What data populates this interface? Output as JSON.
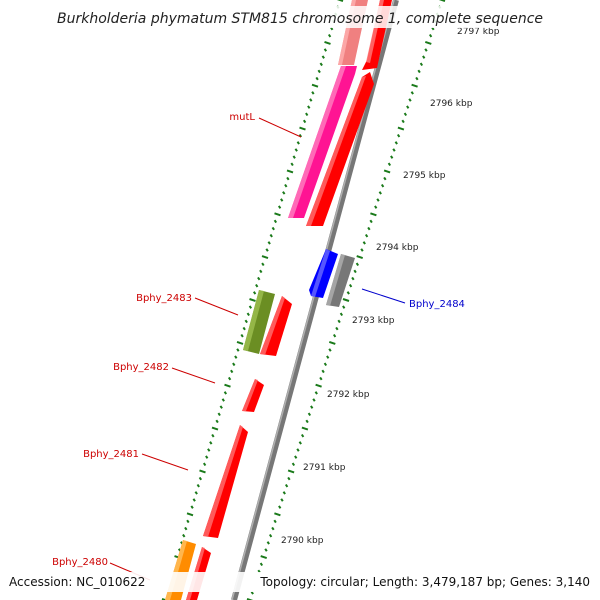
{
  "title": "Burkholderia phymatum STM815 chromosome 1, complete sequence",
  "accession": "Accession: NC_010622",
  "summary": "Topology: circular; Length: 3,479,187 bp; Genes: 3,140",
  "scale_labels": [
    "2797 kbp",
    "2796 kbp",
    "2795 kbp",
    "2794 kbp",
    "2793 kbp",
    "2792 kbp",
    "2791 kbp",
    "2790 kbp"
  ],
  "genes": [
    {
      "name": "mutL",
      "color": "#ff1493"
    },
    {
      "name": "Bphy_2483",
      "color": "#6b8e23"
    },
    {
      "name": "Bphy_2482",
      "color": "#ff0000"
    },
    {
      "name": "Bphy_2481",
      "color": "#ff0000"
    },
    {
      "name": "Bphy_2480",
      "color": "#ff8c00"
    },
    {
      "name": "Bphy_2484",
      "color": "#0000ff"
    }
  ],
  "colors": {
    "cds": "#ff0000",
    "cds_light": "#f08080",
    "grey_gene": "#777777",
    "backbone": "#888888",
    "tick_green": "#1a7a1a",
    "forward_label": "#cc0000",
    "reverse_label": "#0000cc"
  }
}
